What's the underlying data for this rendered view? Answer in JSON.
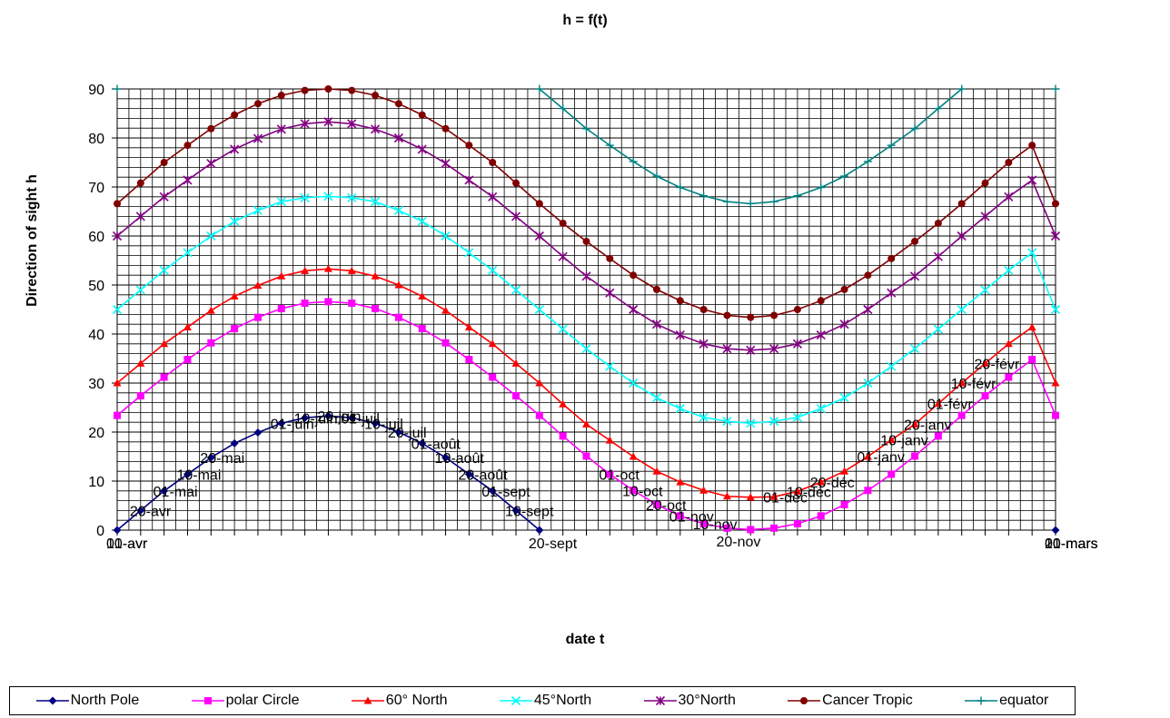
{
  "chart_data": {
    "type": "line",
    "title": "h = f(t)",
    "xlabel": "date t",
    "ylabel": "Direction of sight   h",
    "ylim": [
      0,
      90
    ],
    "yticks": [
      "0",
      "10",
      "20",
      "30",
      "40",
      "50",
      "60",
      "70",
      "80",
      "90"
    ],
    "grid": true,
    "legend_position": "bottom",
    "x_count": 41,
    "point_labels": [
      {
        "text": "01-avr",
        "series": 0,
        "index": 0
      },
      {
        "text": "10-avr",
        "series": 0,
        "index": 0
      },
      {
        "text": "20-avr",
        "series": 0,
        "index": 1
      },
      {
        "text": "01-mai",
        "series": 0,
        "index": 2
      },
      {
        "text": "10-mai",
        "series": 0,
        "index": 3
      },
      {
        "text": "20-mai",
        "series": 0,
        "index": 4
      },
      {
        "text": "01-juin",
        "series": 0,
        "index": 7
      },
      {
        "text": "10-juin",
        "series": 0,
        "index": 8
      },
      {
        "text": "20-juin",
        "series": 0,
        "index": 9
      },
      {
        "text": "01-juil",
        "series": 0,
        "index": 10
      },
      {
        "text": "10-juil",
        "series": 0,
        "index": 11
      },
      {
        "text": "20-juil",
        "series": 0,
        "index": 12
      },
      {
        "text": "01-août",
        "series": 0,
        "index": 13
      },
      {
        "text": "10-août",
        "series": 0,
        "index": 14
      },
      {
        "text": "20-août",
        "series": 0,
        "index": 15
      },
      {
        "text": "01-sept",
        "series": 0,
        "index": 16
      },
      {
        "text": "10-sept",
        "series": 0,
        "index": 17
      },
      {
        "text": "20-sept",
        "series": 0,
        "index": 18
      },
      {
        "text": "01-oct",
        "series": 1,
        "index": 21
      },
      {
        "text": "10-oct",
        "series": 1,
        "index": 22
      },
      {
        "text": "20-oct",
        "series": 1,
        "index": 23
      },
      {
        "text": "01-nov",
        "series": 1,
        "index": 24
      },
      {
        "text": "10-nov",
        "series": 1,
        "index": 25
      },
      {
        "text": "20-nov",
        "series": 1,
        "index": 26
      },
      {
        "text": "01-déc",
        "series": 2,
        "index": 28
      },
      {
        "text": "10-déc",
        "series": 2,
        "index": 29
      },
      {
        "text": "20-déc",
        "series": 2,
        "index": 30
      },
      {
        "text": "01-janv",
        "series": 2,
        "index": 32
      },
      {
        "text": "10-janv",
        "series": 2,
        "index": 33
      },
      {
        "text": "20-janv",
        "series": 2,
        "index": 34
      },
      {
        "text": "01-févr",
        "series": 2,
        "index": 35
      },
      {
        "text": "10-févr",
        "series": 2,
        "index": 36
      },
      {
        "text": "20-févr",
        "series": 2,
        "index": 37
      },
      {
        "text": "01-mars",
        "series": 0,
        "index": 40
      },
      {
        "text": "10-mars",
        "series": 0,
        "index": 40
      },
      {
        "text": "20-mars",
        "series": 0,
        "index": 40
      }
    ],
    "series": [
      {
        "name": "North Pole",
        "color": "#000080",
        "marker": "diamond",
        "values": [
          0,
          4,
          8,
          11.4,
          14.8,
          17.7,
          19.9,
          21.8,
          22.9,
          23.3,
          22.9,
          21.8,
          20,
          17.7,
          14.8,
          11.4,
          8,
          4,
          0,
          null,
          null,
          null,
          null,
          null,
          null,
          null,
          null,
          null,
          null,
          null,
          null,
          null,
          null,
          null,
          null,
          null,
          null,
          null,
          null,
          null,
          0
        ]
      },
      {
        "name": "polar Circle",
        "color": "#ff00ff",
        "marker": "square",
        "values": [
          23.4,
          27.4,
          31.2,
          34.8,
          38.2,
          41.1,
          43.4,
          45.2,
          46.3,
          46.6,
          46.3,
          45.2,
          43.4,
          41.1,
          38.2,
          34.8,
          31.2,
          27.4,
          23.4,
          19.2,
          15.1,
          11.4,
          8.1,
          5.2,
          2.9,
          1.3,
          0.4,
          0.1,
          0.4,
          1.3,
          2.9,
          5.2,
          8.1,
          11.4,
          15.1,
          19.2,
          23.4,
          27.4,
          31.2,
          34.8,
          23.4
        ]
      },
      {
        "name": "60° North",
        "color": "#ff0000",
        "marker": "triangle",
        "values": [
          30,
          34,
          38,
          41.4,
          44.8,
          47.7,
          49.9,
          51.8,
          52.9,
          53.3,
          52.9,
          51.8,
          50,
          47.7,
          44.8,
          41.4,
          38,
          34,
          30,
          25.7,
          21.6,
          18.3,
          15,
          12,
          9.8,
          8.1,
          6.9,
          6.7,
          6.8,
          7.9,
          9.8,
          12,
          15,
          18.4,
          21.6,
          25.8,
          30,
          34,
          38,
          41.4,
          30
        ]
      },
      {
        "name": "45°North",
        "color": "#00ffff",
        "marker": "x",
        "values": [
          45,
          49,
          53,
          56.6,
          60,
          63,
          65.2,
          67,
          67.8,
          68.1,
          67.8,
          67,
          65.2,
          63,
          60,
          56.6,
          53,
          49,
          45,
          41,
          37,
          33.4,
          30,
          27,
          24.8,
          23,
          22.2,
          21.8,
          22.2,
          23,
          24.8,
          27,
          30,
          33.4,
          37,
          41,
          45,
          49,
          53,
          56.6,
          45
        ]
      },
      {
        "name": "30°North",
        "color": "#800080",
        "marker": "star",
        "values": [
          60,
          64,
          68,
          71.4,
          74.8,
          77.7,
          79.9,
          81.8,
          82.9,
          83.3,
          82.9,
          81.8,
          80,
          77.7,
          74.8,
          71.4,
          68,
          64,
          60,
          55.8,
          51.8,
          48.4,
          45,
          42,
          39.8,
          38,
          37,
          36.7,
          37,
          38,
          39.8,
          42,
          45,
          48.4,
          51.8,
          55.8,
          60,
          64,
          68,
          71.4,
          60
        ]
      },
      {
        "name": "Cancer Tropic",
        "color": "#800000",
        "marker": "circle",
        "values": [
          66.6,
          70.8,
          75,
          78.5,
          81.9,
          84.7,
          87,
          88.7,
          89.7,
          90,
          89.7,
          88.7,
          87,
          84.7,
          81.9,
          78.5,
          75,
          70.8,
          66.6,
          62.6,
          58.9,
          55.4,
          52,
          49.1,
          46.8,
          45,
          43.8,
          43.4,
          43.8,
          45,
          46.8,
          49.1,
          52,
          55.4,
          58.9,
          62.6,
          66.6,
          70.8,
          75,
          78.5,
          66.6
        ]
      },
      {
        "name": "equator",
        "color": "#008080",
        "marker": "plus",
        "values": [
          90,
          null,
          null,
          null,
          null,
          null,
          null,
          null,
          null,
          null,
          null,
          null,
          null,
          null,
          null,
          null,
          null,
          null,
          null,
          null,
          null,
          null,
          null,
          null,
          null,
          null,
          null,
          null,
          null,
          null,
          null,
          null,
          null,
          null,
          null,
          null,
          null,
          null,
          null,
          null,
          90
        ]
      }
    ],
    "equator_extra": [
      [
        18,
        90
      ],
      [
        19,
        86
      ],
      [
        20,
        81.9
      ],
      [
        21,
        78.5
      ],
      [
        22,
        75.2
      ],
      [
        23,
        72.2
      ],
      [
        24,
        69.9
      ],
      [
        25,
        68.2
      ],
      [
        26,
        67
      ],
      [
        27,
        66.6
      ],
      [
        28,
        67
      ],
      [
        29,
        68.2
      ],
      [
        30,
        69.9
      ],
      [
        31,
        72.2
      ],
      [
        32,
        75.2
      ],
      [
        33,
        78.5
      ],
      [
        34,
        81.9
      ],
      [
        35,
        86
      ],
      [
        36,
        90
      ]
    ]
  },
  "labels": {
    "title": "h = f(t)",
    "x_title": "date t",
    "y_title": "Direction of sight   h"
  }
}
